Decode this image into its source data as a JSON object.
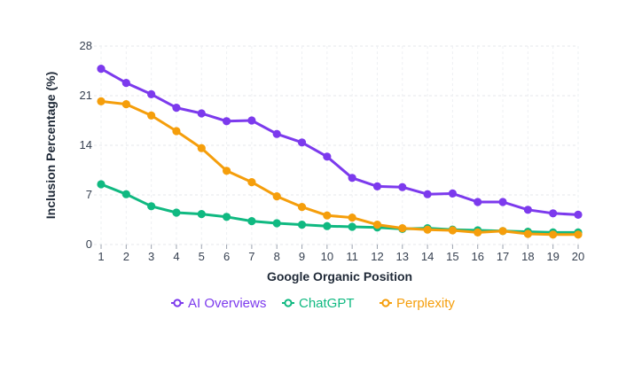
{
  "chart_data": {
    "type": "line",
    "title": "",
    "xlabel": "Google Organic Position",
    "ylabel": "Inclusion Percentage (%)",
    "x": [
      1,
      2,
      3,
      4,
      5,
      6,
      7,
      8,
      9,
      10,
      11,
      12,
      13,
      14,
      15,
      16,
      17,
      18,
      19,
      20
    ],
    "ylim": [
      0,
      28
    ],
    "yticks": [
      0,
      7,
      14,
      21,
      28
    ],
    "grid": true,
    "legend_position": "bottom",
    "series": [
      {
        "name": "AI Overviews",
        "color": "#7c3aed",
        "values": [
          24.8,
          22.8,
          21.2,
          19.3,
          18.5,
          17.4,
          17.5,
          15.6,
          14.4,
          12.4,
          9.4,
          8.2,
          8.1,
          7.1,
          7.2,
          6.0,
          6.0,
          4.9,
          4.4,
          4.2
        ]
      },
      {
        "name": "ChatGPT",
        "color": "#10b981",
        "values": [
          8.5,
          7.1,
          5.4,
          4.5,
          4.3,
          3.9,
          3.3,
          3.0,
          2.8,
          2.6,
          2.5,
          2.4,
          2.2,
          2.3,
          2.1,
          2.0,
          1.9,
          1.8,
          1.7,
          1.7
        ]
      },
      {
        "name": "Perplexity",
        "color": "#f59e0b",
        "values": [
          20.2,
          19.8,
          18.2,
          16.0,
          13.6,
          10.4,
          8.8,
          6.8,
          5.3,
          4.1,
          3.8,
          2.8,
          2.3,
          2.1,
          2.0,
          1.7,
          1.9,
          1.5,
          1.4,
          1.4
        ]
      }
    ]
  }
}
